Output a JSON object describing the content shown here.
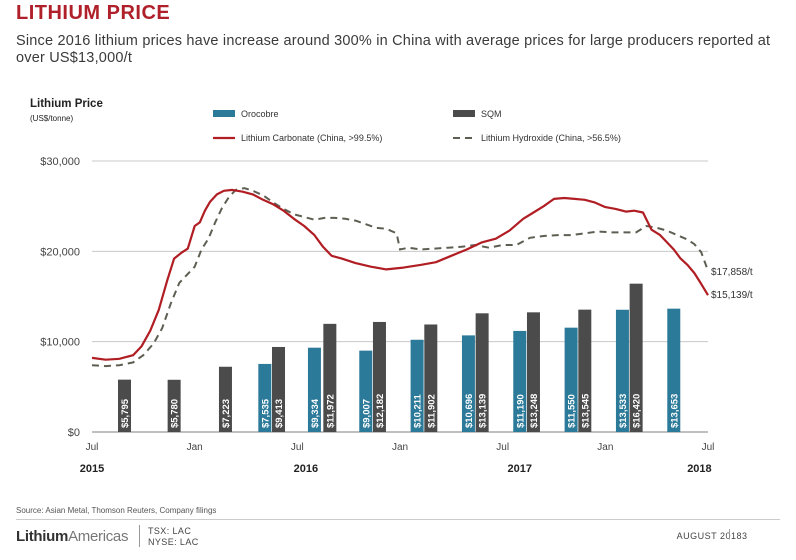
{
  "header": {
    "title": "LITHIUM PRICE",
    "subtitle": "Since 2016 lithium prices have increase around 300% in China with average prices for large producers reported at over US$13,000/t"
  },
  "chart_data": {
    "type": "bar+line",
    "axis_title": "Lithium Price",
    "axis_unit": "(US$/tonne)",
    "ylim": [
      0,
      30000
    ],
    "y_ticks": [
      {
        "value": 0,
        "label": "$0"
      },
      {
        "value": 10000,
        "label": "$10,000"
      },
      {
        "value": 20000,
        "label": "$20,000"
      },
      {
        "value": 30000,
        "label": "$30,000"
      }
    ],
    "xlim": [
      0,
      36
    ],
    "x_ticks": [
      {
        "month": 0,
        "label": "Jul"
      },
      {
        "month": 6,
        "label": "Jan"
      },
      {
        "month": 12,
        "label": "Jul"
      },
      {
        "month": 18,
        "label": "Jan"
      },
      {
        "month": 24,
        "label": "Jul"
      },
      {
        "month": 30,
        "label": "Jan"
      },
      {
        "month": 36,
        "label": "Jul"
      }
    ],
    "year_labels": [
      {
        "month": 0,
        "label": "2015"
      },
      {
        "month": 12.5,
        "label": "2016"
      },
      {
        "month": 25,
        "label": "2017"
      },
      {
        "month": 35.5,
        "label": "2018"
      }
    ],
    "legend": {
      "orocobre": "Orocobre",
      "sqm": "SQM",
      "carbonate": "Lithium Carbonate (China, >99.5%)",
      "hydroxide": "Lithium Hydroxide (China, >56.5%)"
    },
    "colors": {
      "orocobre": "#2b7a99",
      "sqm": "#4b4b4b",
      "carbonate": "#b01e24",
      "hydroxide": "#5e5e52",
      "grid": "#c8c8c8"
    },
    "bars": [
      {
        "series": "sqm",
        "month": 1.9,
        "value": 5795,
        "label": "$5,795"
      },
      {
        "series": "sqm",
        "month": 4.8,
        "value": 5780,
        "label": "$5,780"
      },
      {
        "series": "sqm",
        "month": 7.8,
        "value": 7223,
        "label": "$7,223"
      },
      {
        "series": "orocobre",
        "month": 10.1,
        "value": 7535,
        "label": "$7,535"
      },
      {
        "series": "sqm",
        "month": 10.9,
        "value": 9413,
        "label": "$9,413"
      },
      {
        "series": "orocobre",
        "month": 13.0,
        "value": 9334,
        "label": "$9,334"
      },
      {
        "series": "sqm",
        "month": 13.9,
        "value": 11972,
        "label": "$11,972"
      },
      {
        "series": "orocobre",
        "month": 16.0,
        "value": 9007,
        "label": "$9,007"
      },
      {
        "series": "sqm",
        "month": 16.8,
        "value": 12182,
        "label": "$12,182"
      },
      {
        "series": "orocobre",
        "month": 19.0,
        "value": 10211,
        "label": "$10,211"
      },
      {
        "series": "sqm",
        "month": 19.8,
        "value": 11902,
        "label": "$11,902"
      },
      {
        "series": "orocobre",
        "month": 22.0,
        "value": 10696,
        "label": "$10,696"
      },
      {
        "series": "sqm",
        "month": 22.8,
        "value": 13139,
        "label": "$13,139"
      },
      {
        "series": "orocobre",
        "month": 25.0,
        "value": 11190,
        "label": "$11,190"
      },
      {
        "series": "sqm",
        "month": 25.8,
        "value": 13248,
        "label": "$13,248"
      },
      {
        "series": "orocobre",
        "month": 28.0,
        "value": 11550,
        "label": "$11,550"
      },
      {
        "series": "sqm",
        "month": 28.8,
        "value": 13545,
        "label": "$13,545"
      },
      {
        "series": "orocobre",
        "month": 31.0,
        "value": 13533,
        "label": "$13,533"
      },
      {
        "series": "sqm",
        "month": 31.8,
        "value": 16420,
        "label": "$16,420"
      },
      {
        "series": "orocobre",
        "month": 34.0,
        "value": 13653,
        "label": "$13,653"
      }
    ],
    "carbonate_series": {
      "x": [
        0,
        0.8,
        1.6,
        2.4,
        2.9,
        3.4,
        3.9,
        4.4,
        4.8,
        5.2,
        5.6,
        6.0,
        6.3,
        6.6,
        6.9,
        7.3,
        7.7,
        8.2,
        8.8,
        9.4,
        10.0,
        10.6,
        11.2,
        11.8,
        12.4,
        13.0,
        13.5,
        14.0,
        14.6,
        15.4,
        16.3,
        17.2,
        18.2,
        19.2,
        20.1,
        21.0,
        21.9,
        22.8,
        23.6,
        24.4,
        25.2,
        25.8,
        26.4,
        27.0,
        27.6,
        28.2,
        28.8,
        29.4,
        30.0,
        30.6,
        31.2,
        31.7,
        32.2,
        32.7,
        33.2,
        33.6,
        34.0,
        34.4,
        34.8,
        35.2,
        35.6,
        36.0
      ],
      "values": [
        8200,
        8000,
        8100,
        8500,
        9500,
        11200,
        13500,
        16800,
        19200,
        19800,
        20300,
        22800,
        23200,
        24500,
        25500,
        26300,
        26700,
        26800,
        26600,
        26300,
        25700,
        25200,
        24500,
        23600,
        22800,
        21800,
        20500,
        19500,
        19200,
        18700,
        18300,
        18000,
        18200,
        18500,
        18800,
        19500,
        20200,
        21000,
        21400,
        22300,
        23600,
        24300,
        25000,
        25800,
        25900,
        25800,
        25700,
        25400,
        24900,
        24700,
        24400,
        24500,
        24300,
        22400,
        21800,
        21000,
        20200,
        19200,
        18500,
        17600,
        16400,
        15139
      ]
    },
    "hydroxide_series": {
      "x": [
        0,
        0.8,
        1.6,
        2.4,
        3.0,
        3.6,
        4.1,
        4.6,
        5.1,
        5.6,
        6.0,
        6.4,
        6.8,
        7.2,
        7.6,
        8.0,
        8.4,
        8.9,
        9.4,
        10.0,
        10.6,
        11.2,
        11.8,
        12.4,
        13.0,
        13.6,
        14.2,
        14.8,
        15.4,
        16.0,
        16.6,
        17.2,
        17.8,
        18.0,
        18.5,
        19.2,
        20.0,
        20.8,
        21.6,
        22.4,
        23.2,
        24.0,
        24.8,
        25.6,
        26.4,
        27.2,
        28.0,
        28.8,
        29.6,
        30.4,
        31.2,
        31.8,
        32.4,
        33.0,
        33.6,
        34.2,
        34.8,
        35.2,
        35.6,
        36.0
      ],
      "values": [
        7400,
        7300,
        7400,
        7700,
        8500,
        9800,
        11500,
        14200,
        16500,
        17500,
        18300,
        20200,
        21400,
        23200,
        24800,
        26000,
        26800,
        27000,
        26700,
        26200,
        25400,
        24700,
        24100,
        23800,
        23500,
        23700,
        23700,
        23600,
        23400,
        23000,
        22600,
        22500,
        22000,
        20200,
        20400,
        20200,
        20300,
        20400,
        20500,
        20700,
        20400,
        20700,
        20700,
        21500,
        21700,
        21800,
        21800,
        22000,
        22200,
        22100,
        22100,
        22100,
        22800,
        22600,
        22300,
        21800,
        21300,
        20800,
        19900,
        17858
      ]
    },
    "end_labels": {
      "hydroxide": "$17,858/t",
      "carbonate": "$15,139/t"
    }
  },
  "footer": {
    "source": "Source: Asian Metal, Thomson Reuters, Company filings",
    "logo_bold": "Lithium",
    "logo_light": "Americas",
    "ticker_tsx": "TSX: LAC",
    "ticker_nyse": "NYSE: LAC",
    "date": "AUGUST 2018",
    "page_sep": "|",
    "page": "3"
  }
}
